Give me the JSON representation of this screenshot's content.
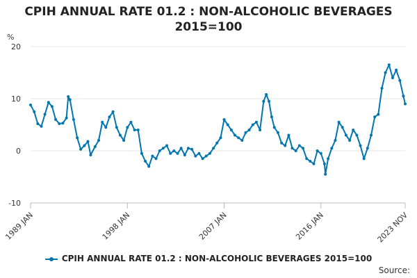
{
  "chart_data": {
    "type": "line",
    "title_line1": "CPIH ANNUAL RATE 01.2 : NON-ALCOHOLIC BEVERAGES",
    "title_line2": "2015=100",
    "ylabel": "%",
    "ylim": [
      -10,
      20
    ],
    "yticks": [
      -10,
      0,
      10,
      20
    ],
    "xticks": [
      "1989 JAN",
      "1998 JAN",
      "2007 JAN",
      "2016 JAN",
      "2023 NOV"
    ],
    "xlim": [
      "1989-01",
      "2023-11"
    ],
    "grid": true,
    "legend_position": "bottom",
    "series": [
      {
        "name": "CPIH ANNUAL RATE 01.2 : NON-ALCOHOLIC BEVERAGES 2015=100",
        "color": "#0075b0",
        "points": [
          [
            "1989-01",
            8.8
          ],
          [
            "1989-05",
            7.5
          ],
          [
            "1989-09",
            5.2
          ],
          [
            "1990-01",
            4.7
          ],
          [
            "1990-05",
            7.0
          ],
          [
            "1990-09",
            9.3
          ],
          [
            "1991-01",
            8.5
          ],
          [
            "1991-05",
            6.0
          ],
          [
            "1991-09",
            5.2
          ],
          [
            "1992-01",
            5.3
          ],
          [
            "1992-05",
            6.3
          ],
          [
            "1992-07",
            10.4
          ],
          [
            "1992-09",
            9.8
          ],
          [
            "1993-01",
            6.0
          ],
          [
            "1993-05",
            2.5
          ],
          [
            "1993-09",
            0.3
          ],
          [
            "1994-01",
            1.0
          ],
          [
            "1994-05",
            1.8
          ],
          [
            "1994-08",
            -0.8
          ],
          [
            "1995-01",
            0.8
          ],
          [
            "1995-05",
            2.0
          ],
          [
            "1995-09",
            5.5
          ],
          [
            "1996-01",
            4.5
          ],
          [
            "1996-05",
            6.5
          ],
          [
            "1996-09",
            7.5
          ],
          [
            "1997-01",
            4.5
          ],
          [
            "1997-05",
            3.0
          ],
          [
            "1997-09",
            2.0
          ],
          [
            "1998-01",
            4.5
          ],
          [
            "1998-05",
            5.5
          ],
          [
            "1998-09",
            4.0
          ],
          [
            "1999-01",
            4.0
          ],
          [
            "1999-05",
            -0.5
          ],
          [
            "1999-09",
            -2.0
          ],
          [
            "2000-01",
            -3.0
          ],
          [
            "2000-05",
            -1.0
          ],
          [
            "2000-09",
            -1.5
          ],
          [
            "2001-01",
            0.0
          ],
          [
            "2001-05",
            0.5
          ],
          [
            "2001-09",
            1.0
          ],
          [
            "2002-01",
            -0.5
          ],
          [
            "2002-05",
            0.0
          ],
          [
            "2002-09",
            -0.5
          ],
          [
            "2003-01",
            0.5
          ],
          [
            "2003-05",
            -0.8
          ],
          [
            "2003-09",
            0.5
          ],
          [
            "2004-01",
            0.3
          ],
          [
            "2004-05",
            -1.0
          ],
          [
            "2004-09",
            -0.5
          ],
          [
            "2005-01",
            -1.5
          ],
          [
            "2005-05",
            -1.0
          ],
          [
            "2005-09",
            -0.5
          ],
          [
            "2006-01",
            0.5
          ],
          [
            "2006-05",
            1.5
          ],
          [
            "2006-09",
            2.5
          ],
          [
            "2007-01",
            6.0
          ],
          [
            "2007-05",
            5.0
          ],
          [
            "2007-09",
            4.0
          ],
          [
            "2008-01",
            3.0
          ],
          [
            "2008-05",
            2.5
          ],
          [
            "2008-09",
            2.0
          ],
          [
            "2009-01",
            3.5
          ],
          [
            "2009-05",
            4.0
          ],
          [
            "2009-09",
            5.0
          ],
          [
            "2010-01",
            5.5
          ],
          [
            "2010-05",
            4.0
          ],
          [
            "2010-09",
            9.5
          ],
          [
            "2010-12",
            10.8
          ],
          [
            "2011-03",
            9.5
          ],
          [
            "2011-06",
            6.5
          ],
          [
            "2011-09",
            4.5
          ],
          [
            "2012-01",
            3.5
          ],
          [
            "2012-05",
            1.5
          ],
          [
            "2012-09",
            1.0
          ],
          [
            "2013-01",
            3.0
          ],
          [
            "2013-05",
            0.5
          ],
          [
            "2013-09",
            0.0
          ],
          [
            "2014-01",
            1.0
          ],
          [
            "2014-05",
            0.5
          ],
          [
            "2014-09",
            -1.5
          ],
          [
            "2015-01",
            -2.0
          ],
          [
            "2015-05",
            -2.5
          ],
          [
            "2015-09",
            0.0
          ],
          [
            "2016-01",
            -0.5
          ],
          [
            "2016-05",
            -2.5
          ],
          [
            "2016-06",
            -4.5
          ],
          [
            "2016-09",
            -1.5
          ],
          [
            "2017-01",
            0.5
          ],
          [
            "2017-05",
            2.0
          ],
          [
            "2017-09",
            5.5
          ],
          [
            "2018-01",
            4.5
          ],
          [
            "2018-05",
            3.0
          ],
          [
            "2018-09",
            2.0
          ],
          [
            "2019-01",
            4.0
          ],
          [
            "2019-05",
            3.0
          ],
          [
            "2019-09",
            1.0
          ],
          [
            "2020-01",
            -1.5
          ],
          [
            "2020-05",
            0.5
          ],
          [
            "2020-09",
            3.0
          ],
          [
            "2021-01",
            6.5
          ],
          [
            "2021-05",
            7.0
          ],
          [
            "2021-09",
            12.0
          ],
          [
            "2022-01",
            15.0
          ],
          [
            "2022-05",
            16.5
          ],
          [
            "2022-09",
            14.0
          ],
          [
            "2023-01",
            15.5
          ],
          [
            "2023-05",
            13.5
          ],
          [
            "2023-09",
            10.5
          ],
          [
            "2023-11",
            9.0
          ]
        ]
      }
    ]
  },
  "source_label": "Source:"
}
